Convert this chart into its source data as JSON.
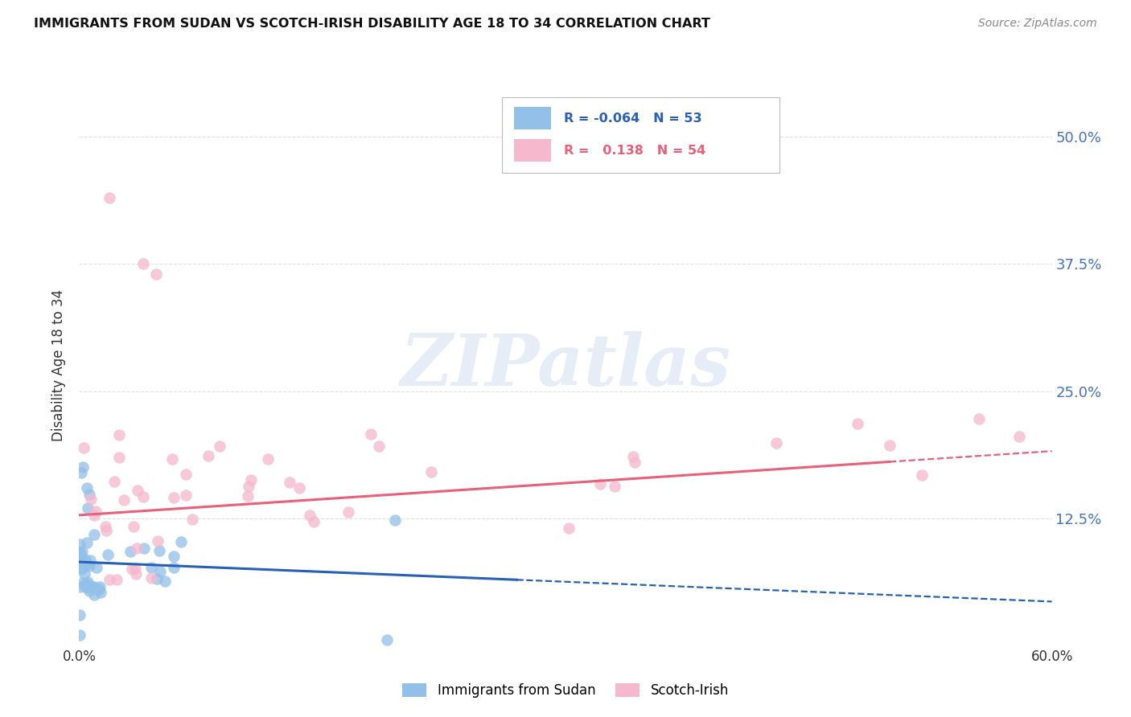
{
  "title": "IMMIGRANTS FROM SUDAN VS SCOTCH-IRISH DISABILITY AGE 18 TO 34 CORRELATION CHART",
  "source": "Source: ZipAtlas.com",
  "ylabel": "Disability Age 18 to 34",
  "r_blue": -0.064,
  "n_blue": 53,
  "r_pink": 0.138,
  "n_pink": 54,
  "y_ticks": [
    0.0,
    0.125,
    0.25,
    0.375,
    0.5
  ],
  "y_tick_labels": [
    "",
    "12.5%",
    "25.0%",
    "37.5%",
    "50.0%"
  ],
  "xlim": [
    0.0,
    0.6
  ],
  "ylim": [
    0.0,
    0.55
  ],
  "blue_color": "#92c0e8",
  "pink_color": "#f5b8cc",
  "blue_line_color": "#2860b8",
  "pink_line_color": "#e8607a",
  "legend_box_color": "#e8e8f0",
  "watermark_color": "#d0ddf0",
  "background_color": "#ffffff",
  "grid_color": "#cccccc",
  "right_axis_color": "#4472c4",
  "title_color": "#111111",
  "source_color": "#888888"
}
